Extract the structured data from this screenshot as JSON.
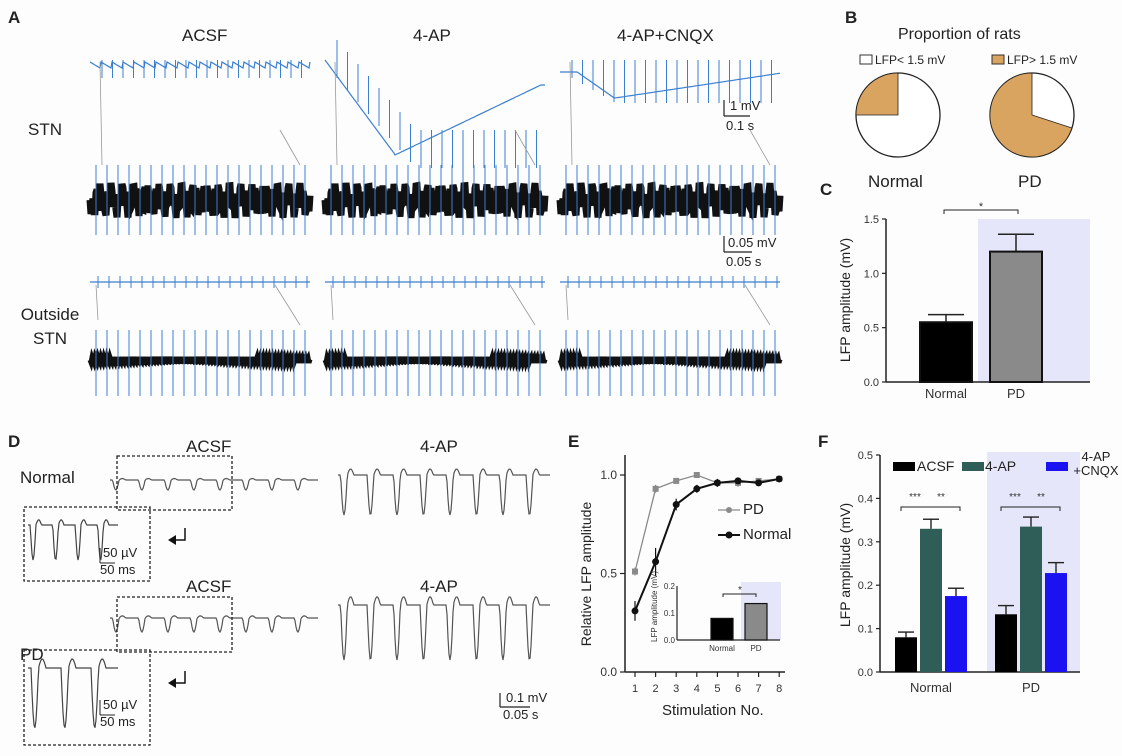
{
  "panels": {
    "A": {
      "label": "A",
      "columns": [
        "ACSF",
        "4-AP",
        "4-AP+CNQX"
      ],
      "rows": [
        "STN",
        "Outside STN"
      ],
      "scale1": {
        "v": "1 mV",
        "t": "0.1 s"
      },
      "scale2": {
        "v": "0.05 mV",
        "t": "0.05 s"
      }
    },
    "D": {
      "label": "D",
      "rows": [
        "Normal",
        "PD"
      ],
      "conditions": [
        "ACSF",
        "4-AP"
      ],
      "inset_scale": {
        "v": "50 µV",
        "t": "50 ms"
      },
      "scale": {
        "v": "0.1 mV",
        "t": "0.05 s"
      }
    },
    "B": {
      "label": "B"
    },
    "C": {
      "label": "C"
    },
    "E": {
      "label": "E"
    },
    "F": {
      "label": "F"
    }
  },
  "colors": {
    "trace_blue": "#3a7fd0",
    "orange": "#d9a45f",
    "shade": "#e6e6fa",
    "gray": "#8a8a8a",
    "teal": "#2f5e58",
    "blue": "#1a12f0"
  },
  "chart_data": [
    {
      "id": "B",
      "type": "pie",
      "title": "Proportion of rats",
      "legend": [
        "LFP< 1.5 mV",
        "LFP> 1.5 mV"
      ],
      "pies": [
        {
          "name": "Normal",
          "values": [
            0.75,
            0.25
          ]
        },
        {
          "name": "PD",
          "values": [
            0.3,
            0.7
          ]
        }
      ]
    },
    {
      "id": "C",
      "type": "bar",
      "categories": [
        "Normal",
        "PD"
      ],
      "values": [
        0.55,
        1.2
      ],
      "errors": [
        0.07,
        0.16
      ],
      "ylabel": "LFP amplitude (mV)",
      "ylim": [
        0,
        1.5
      ],
      "yticks": [
        "0.0",
        "0.5",
        "1.0",
        "1.5"
      ],
      "significance": "*"
    },
    {
      "id": "E",
      "type": "line",
      "xlabel": "Stimulation No.",
      "ylabel": "Relative LFP amplitude",
      "ylim": [
        0,
        1.0
      ],
      "x": [
        1,
        2,
        3,
        4,
        5,
        6,
        7,
        8
      ],
      "xticks": [
        "1",
        "2",
        "3",
        "4",
        "5",
        "6",
        "7",
        "8"
      ],
      "yticks": [
        "0.0",
        "0.5",
        "1.0"
      ],
      "series": [
        {
          "name": "PD",
          "values": [
            0.51,
            0.93,
            0.97,
            1.0,
            0.96,
            0.96,
            0.97,
            0.98
          ],
          "errors": [
            0.02,
            0.02,
            0.01,
            0.01,
            0.02,
            0.02,
            0.01,
            0.01
          ]
        },
        {
          "name": "Normal",
          "values": [
            0.31,
            0.56,
            0.85,
            0.93,
            0.96,
            0.97,
            0.96,
            0.98
          ],
          "errors": [
            0.05,
            0.07,
            0.03,
            0.02,
            0.02,
            0.01,
            0.01,
            0.01
          ]
        }
      ],
      "inset": {
        "type": "bar",
        "categories": [
          "Normal",
          "PD"
        ],
        "values": [
          0.08,
          0.135
        ],
        "errors": [
          0.007,
          0.01
        ],
        "ylabel": "LFP amplitude (mV)",
        "ylim": [
          0,
          0.2
        ],
        "yticks": [
          "0.0",
          "0.1",
          "0.2"
        ],
        "significance": "*"
      }
    },
    {
      "id": "F",
      "type": "bar",
      "categories": [
        "Normal",
        "PD"
      ],
      "ylabel": "LFP amplitude (mV)",
      "ylim": [
        0,
        0.5
      ],
      "yticks": [
        "0.0",
        "0.1",
        "0.2",
        "0.3",
        "0.4",
        "0.5"
      ],
      "series": [
        {
          "name": "ACSF",
          "values": [
            0.08,
            0.133
          ],
          "errors": [
            0.012,
            0.02
          ]
        },
        {
          "name": "4-AP",
          "values": [
            0.33,
            0.335
          ],
          "errors": [
            0.022,
            0.022
          ]
        },
        {
          "name": "4-AP +CNQX",
          "values": [
            0.175,
            0.228
          ],
          "errors": [
            0.018,
            0.024
          ]
        }
      ],
      "significance": [
        "***",
        "**"
      ]
    }
  ]
}
